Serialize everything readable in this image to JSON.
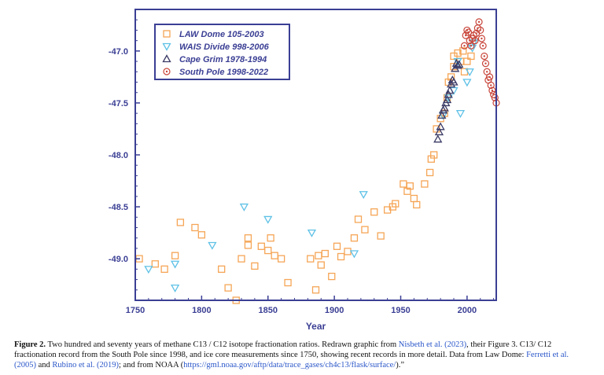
{
  "chart_data": {
    "type": "scatter",
    "xlabel": "Year",
    "ylabel": "",
    "xlim": [
      1750,
      2022
    ],
    "ylim": [
      -49.4,
      -46.6
    ],
    "xticks": [
      1750,
      1800,
      1850,
      1900,
      1950,
      2000
    ],
    "yticks": [
      -47.0,
      -47.5,
      -48.0,
      -48.5,
      -49.0
    ],
    "xtick_labels": [
      "1750",
      "1800",
      "1850",
      "1900",
      "1950",
      "2000"
    ],
    "ytick_labels": [
      "-47.0",
      "-47.5",
      "-48.0",
      "-48.5",
      "-49.0"
    ],
    "grid": false,
    "legend_position": "top-left",
    "series": [
      {
        "name": "LAW Dome 105-2003",
        "marker": "square",
        "color": "#f5a556",
        "points": [
          [
            1753,
            -49.0
          ],
          [
            1765,
            -49.05
          ],
          [
            1772,
            -49.1
          ],
          [
            1780,
            -48.97
          ],
          [
            1784,
            -48.65
          ],
          [
            1795,
            -48.7
          ],
          [
            1800,
            -48.77
          ],
          [
            1815,
            -49.1
          ],
          [
            1820,
            -49.28
          ],
          [
            1826,
            -49.4
          ],
          [
            1830,
            -49.0
          ],
          [
            1835,
            -48.87
          ],
          [
            1835,
            -48.8
          ],
          [
            1840,
            -49.07
          ],
          [
            1845,
            -48.88
          ],
          [
            1850,
            -48.92
          ],
          [
            1852,
            -48.8
          ],
          [
            1855,
            -48.97
          ],
          [
            1860,
            -49.0
          ],
          [
            1865,
            -49.23
          ],
          [
            1882,
            -49.0
          ],
          [
            1886,
            -49.3
          ],
          [
            1888,
            -48.97
          ],
          [
            1890,
            -49.06
          ],
          [
            1893,
            -48.95
          ],
          [
            1898,
            -49.17
          ],
          [
            1902,
            -48.88
          ],
          [
            1905,
            -48.98
          ],
          [
            1910,
            -48.93
          ],
          [
            1915,
            -48.8
          ],
          [
            1918,
            -48.62
          ],
          [
            1923,
            -48.72
          ],
          [
            1930,
            -48.55
          ],
          [
            1935,
            -48.78
          ],
          [
            1940,
            -48.53
          ],
          [
            1944,
            -48.5
          ],
          [
            1946,
            -48.47
          ],
          [
            1952,
            -48.28
          ],
          [
            1955,
            -48.35
          ],
          [
            1957,
            -48.3
          ],
          [
            1960,
            -48.42
          ],
          [
            1962,
            -48.48
          ],
          [
            1968,
            -48.28
          ],
          [
            1972,
            -48.17
          ],
          [
            1973,
            -48.04
          ],
          [
            1975,
            -48.0
          ],
          [
            1977,
            -47.75
          ],
          [
            1980,
            -47.65
          ],
          [
            1983,
            -47.6
          ],
          [
            1985,
            -47.45
          ],
          [
            1986,
            -47.3
          ],
          [
            1988,
            -47.25
          ],
          [
            1990,
            -47.15
          ],
          [
            1990,
            -47.05
          ],
          [
            1993,
            -47.02
          ],
          [
            1995,
            -47.1
          ],
          [
            1997,
            -47.0
          ],
          [
            1998,
            -47.2
          ],
          [
            2000,
            -47.1
          ],
          [
            2003,
            -47.05
          ]
        ]
      },
      {
        "name": "WAIS Divide 998-2006",
        "marker": "triangle-down",
        "color": "#5ec1e6",
        "points": [
          [
            1760,
            -49.1
          ],
          [
            1780,
            -49.28
          ],
          [
            1780,
            -49.05
          ],
          [
            1808,
            -48.87
          ],
          [
            1832,
            -48.5
          ],
          [
            1850,
            -48.62
          ],
          [
            1883,
            -48.75
          ],
          [
            1915,
            -48.95
          ],
          [
            1922,
            -48.38
          ],
          [
            1982,
            -47.62
          ],
          [
            1986,
            -47.45
          ],
          [
            1990,
            -47.38
          ],
          [
            1993,
            -47.1
          ],
          [
            1995,
            -47.6
          ],
          [
            2000,
            -47.3
          ],
          [
            2002,
            -47.2
          ],
          [
            2004,
            -46.97
          ],
          [
            2005,
            -46.92
          ]
        ]
      },
      {
        "name": "Cape Grim 1978-1994",
        "marker": "triangle-up",
        "color": "#3a3a66",
        "points": [
          [
            1978,
            -47.85
          ],
          [
            1979,
            -47.78
          ],
          [
            1980,
            -47.73
          ],
          [
            1981,
            -47.62
          ],
          [
            1982,
            -47.57
          ],
          [
            1983,
            -47.55
          ],
          [
            1984,
            -47.5
          ],
          [
            1985,
            -47.47
          ],
          [
            1986,
            -47.42
          ],
          [
            1987,
            -47.38
          ],
          [
            1988,
            -47.32
          ],
          [
            1989,
            -47.28
          ],
          [
            1990,
            -47.3
          ],
          [
            1991,
            -47.17
          ],
          [
            1992,
            -47.12
          ],
          [
            1993,
            -47.14
          ],
          [
            1994,
            -47.13
          ]
        ]
      },
      {
        "name": "South Pole 1998-2022",
        "marker": "circle-dot",
        "color": "#c8453a",
        "points": [
          [
            1998,
            -46.95
          ],
          [
            1999,
            -46.85
          ],
          [
            2000,
            -46.8
          ],
          [
            2001,
            -46.82
          ],
          [
            2002,
            -46.9
          ],
          [
            2003,
            -46.95
          ],
          [
            2004,
            -46.88
          ],
          [
            2005,
            -46.85
          ],
          [
            2006,
            -46.9
          ],
          [
            2007,
            -46.83
          ],
          [
            2008,
            -46.78
          ],
          [
            2009,
            -46.72
          ],
          [
            2010,
            -46.8
          ],
          [
            2011,
            -46.88
          ],
          [
            2012,
            -46.95
          ],
          [
            2013,
            -47.05
          ],
          [
            2014,
            -47.12
          ],
          [
            2015,
            -47.2
          ],
          [
            2016,
            -47.28
          ],
          [
            2017,
            -47.25
          ],
          [
            2018,
            -47.33
          ],
          [
            2019,
            -47.38
          ],
          [
            2020,
            -47.42
          ],
          [
            2021,
            -47.45
          ],
          [
            2022,
            -47.5
          ]
        ]
      }
    ]
  },
  "caption": {
    "figure_label": "Figure 2.",
    "part1": " Two hundred and seventy years of methane C13 / C12 isotope fractionation ratios. Redrawn graphic from ",
    "link1": "Nisbeth et al. (2023)",
    "part2": ", their Figure 3. C13/ C12 fractionation record from the South Pole since 1998, and ice core measurements since 1750, showing recent records in more detail. Data from Law Dome: ",
    "link2": "Ferretti et al. (2005)",
    "part3": " and ",
    "link3": "Rubino et al. (2019)",
    "part4": "; and from NOAA (",
    "link4": "https://gml.noaa.gov/aftp/data/trace_gases/ch4c13/flask/surface/",
    "part5": ").”"
  }
}
